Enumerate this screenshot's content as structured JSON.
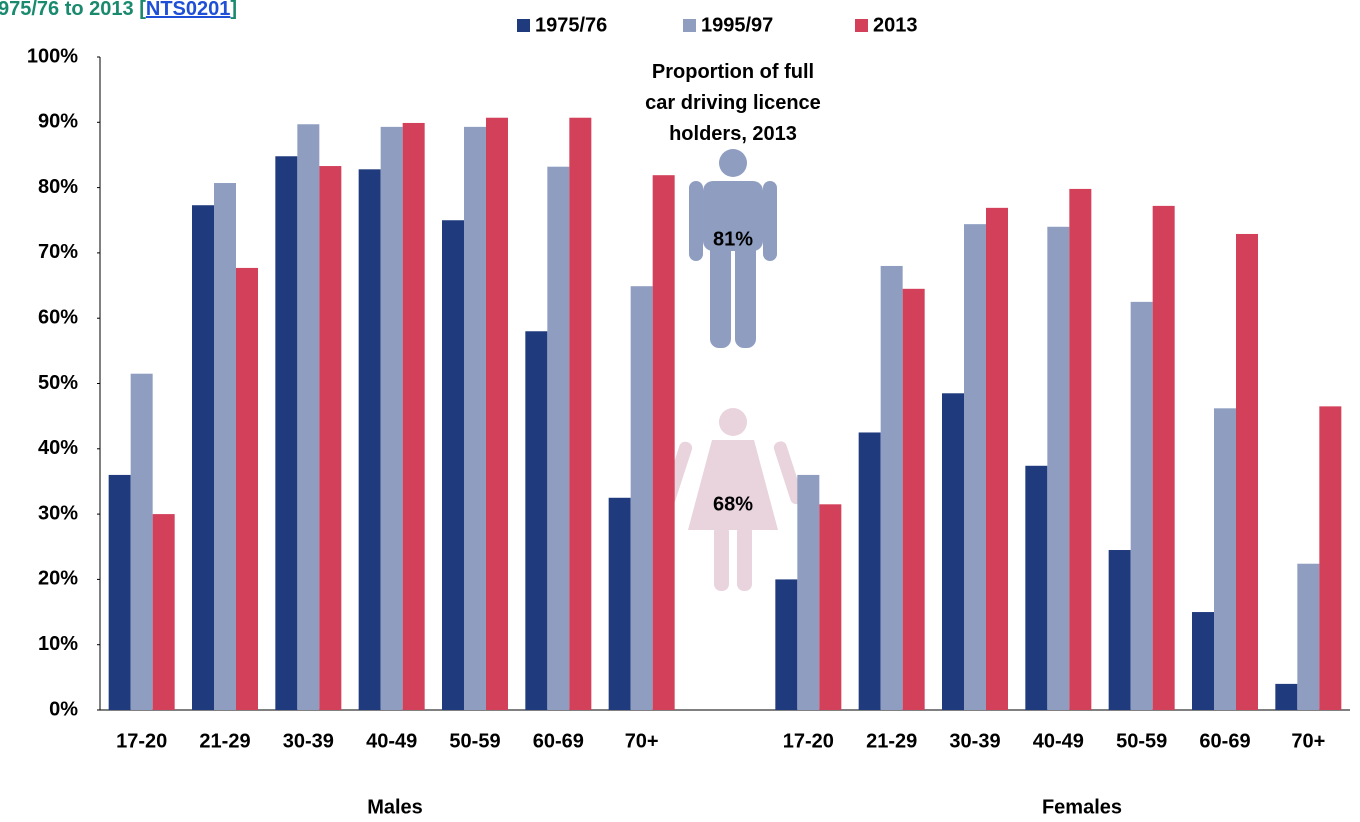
{
  "chart_data": {
    "type": "bar",
    "title": "975/76 to 2013 [",
    "title_link": "NTS0201",
    "title_end": "]",
    "annotation": "Proportion of full car driving licence holders, 2013",
    "icon_labels": [
      "81%",
      "68%"
    ],
    "group_labels": [
      "Males",
      "Females"
    ],
    "categories": [
      "17-20",
      "21-29",
      "30-39",
      "40-49",
      "50-59",
      "60-69",
      "70+",
      null,
      "17-20",
      "21-29",
      "30-39",
      "40-49",
      "50-59",
      "60-69",
      "70+"
    ],
    "series": [
      {
        "name": "1975/76",
        "color": "#1f3a7d",
        "values": [
          36,
          77.3,
          84.8,
          82.8,
          75,
          58,
          32.5,
          null,
          20,
          42.5,
          48.5,
          37.4,
          24.5,
          15,
          4
        ]
      },
      {
        "name": "1995/97",
        "color": "#8e9dc0",
        "values": [
          51.5,
          80.7,
          89.7,
          89.3,
          89.3,
          83.2,
          64.9,
          null,
          36,
          68,
          74.4,
          74,
          62.5,
          46.2,
          22.4
        ]
      },
      {
        "name": "2013",
        "color": "#d2405a",
        "values": [
          30,
          67.7,
          83.3,
          89.9,
          90.7,
          90.7,
          81.9,
          null,
          31.5,
          64.5,
          76.9,
          79.8,
          77.2,
          72.9,
          46.5
        ]
      }
    ],
    "ylim": [
      0,
      100
    ],
    "yticks": [
      {
        "value": 0,
        "label": "0%"
      },
      {
        "value": 10,
        "label": "10%"
      },
      {
        "value": 20,
        "label": "20%"
      },
      {
        "value": 30,
        "label": "30%"
      },
      {
        "value": 40,
        "label": "40%"
      },
      {
        "value": 50,
        "label": "50%"
      },
      {
        "value": 60,
        "label": "60%"
      },
      {
        "value": 70,
        "label": "70%"
      },
      {
        "value": 80,
        "label": "80%"
      },
      {
        "value": 90,
        "label": "90%"
      },
      {
        "value": 100,
        "label": "100%"
      }
    ],
    "grid": false
  }
}
